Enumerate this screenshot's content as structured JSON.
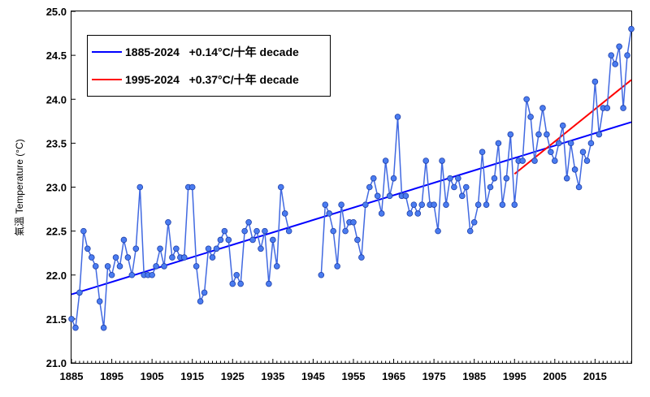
{
  "chart_data": {
    "type": "line",
    "title": "",
    "xlabel": "",
    "ylabel": "氣溫 Temperature (°C)",
    "xlim": [
      1885,
      2024
    ],
    "ylim": [
      21.0,
      25.0
    ],
    "x_ticks": [
      "1885",
      "1895",
      "1905",
      "1915",
      "1925",
      "1935",
      "1945",
      "1955",
      "1965",
      "1975",
      "1985",
      "1995",
      "2005",
      "2015"
    ],
    "y_ticks": [
      "21.0",
      "21.5",
      "22.0",
      "22.5",
      "23.0",
      "23.5",
      "24.0",
      "24.5",
      "25.0"
    ],
    "legend_position": "top-left",
    "colors": {
      "series": "#4169E1",
      "marker": "#4A7CF0",
      "trend_1885": "#0000FF",
      "trend_1995": "#FF0000"
    },
    "series": [
      {
        "x": [
          1885,
          1886,
          1887,
          1888,
          1889,
          1890,
          1891,
          1892,
          1893,
          1894,
          1895,
          1896,
          1897,
          1898,
          1899,
          1900,
          1901,
          1902,
          1903,
          1904,
          1905,
          1906,
          1907,
          1908,
          1909,
          1910,
          1911,
          1912,
          1913,
          1914,
          1915,
          1916,
          1917,
          1918,
          1919,
          1920,
          1921,
          1922,
          1923,
          1924,
          1925,
          1926,
          1927,
          1928,
          1929,
          1930,
          1931,
          1932,
          1933,
          1934,
          1935,
          1936,
          1937,
          1938,
          1939
        ],
        "values": [
          21.5,
          21.4,
          21.8,
          22.5,
          22.3,
          22.2,
          22.1,
          21.7,
          21.4,
          22.1,
          22.0,
          22.2,
          22.1,
          22.4,
          22.2,
          22.0,
          22.3,
          23.0,
          22.0,
          22.0,
          22.0,
          22.1,
          22.3,
          22.1,
          22.6,
          22.2,
          22.3,
          22.2,
          22.2,
          23.0,
          23.0,
          22.1,
          21.7,
          21.8,
          22.3,
          22.2,
          22.3,
          22.4,
          22.5,
          22.4,
          21.9,
          22.0,
          21.9,
          22.5,
          22.6,
          22.4,
          22.5,
          22.3,
          22.5,
          21.9,
          22.4,
          22.1,
          23.0,
          22.7,
          22.5
        ]
      },
      {
        "x": [
          1947,
          1948,
          1949,
          1950,
          1951,
          1952,
          1953,
          1954,
          1955,
          1956,
          1957,
          1958,
          1959,
          1960,
          1961,
          1962,
          1963,
          1964,
          1965,
          1966,
          1967,
          1968,
          1969,
          1970,
          1971,
          1972,
          1973,
          1974,
          1975,
          1976,
          1977,
          1978,
          1979,
          1980,
          1981,
          1982,
          1983,
          1984,
          1985,
          1986,
          1987,
          1988,
          1989,
          1990,
          1991,
          1992,
          1993,
          1994,
          1995,
          1996,
          1997,
          1998,
          1999,
          2000,
          2001,
          2002,
          2003,
          2004,
          2005,
          2006,
          2007,
          2008,
          2009,
          2010,
          2011,
          2012,
          2013,
          2014,
          2015,
          2016,
          2017,
          2018,
          2019,
          2020,
          2021,
          2022,
          2023,
          2024
        ],
        "values": [
          22.0,
          22.8,
          22.7,
          22.5,
          22.1,
          22.8,
          22.5,
          22.6,
          22.6,
          22.4,
          22.2,
          22.8,
          23.0,
          23.1,
          22.9,
          22.7,
          23.3,
          22.9,
          23.1,
          23.8,
          22.9,
          22.9,
          22.7,
          22.8,
          22.7,
          22.8,
          23.3,
          22.8,
          22.8,
          22.5,
          23.3,
          22.8,
          23.1,
          23.0,
          23.1,
          22.9,
          23.0,
          22.5,
          22.6,
          22.8,
          23.4,
          22.8,
          23.0,
          23.1,
          23.5,
          22.8,
          23.1,
          23.6,
          22.8,
          23.3,
          23.3,
          24.0,
          23.8,
          23.3,
          23.6,
          23.9,
          23.6,
          23.4,
          23.3,
          23.5,
          23.7,
          23.1,
          23.5,
          23.2,
          23.0,
          23.4,
          23.3,
          23.5,
          24.2,
          23.6,
          23.9,
          23.9,
          24.5,
          24.4,
          24.6,
          23.9,
          24.5,
          24.8
        ]
      }
    ],
    "trend_lines": [
      {
        "name": "1885-2024   +0.14°C/十年 decade",
        "x": [
          1885,
          2024
        ],
        "y": [
          21.78,
          23.74
        ]
      },
      {
        "name": "1995-2024   +0.37°C/十年 decade",
        "x": [
          1995,
          2024
        ],
        "y": [
          23.15,
          24.22
        ]
      }
    ]
  }
}
